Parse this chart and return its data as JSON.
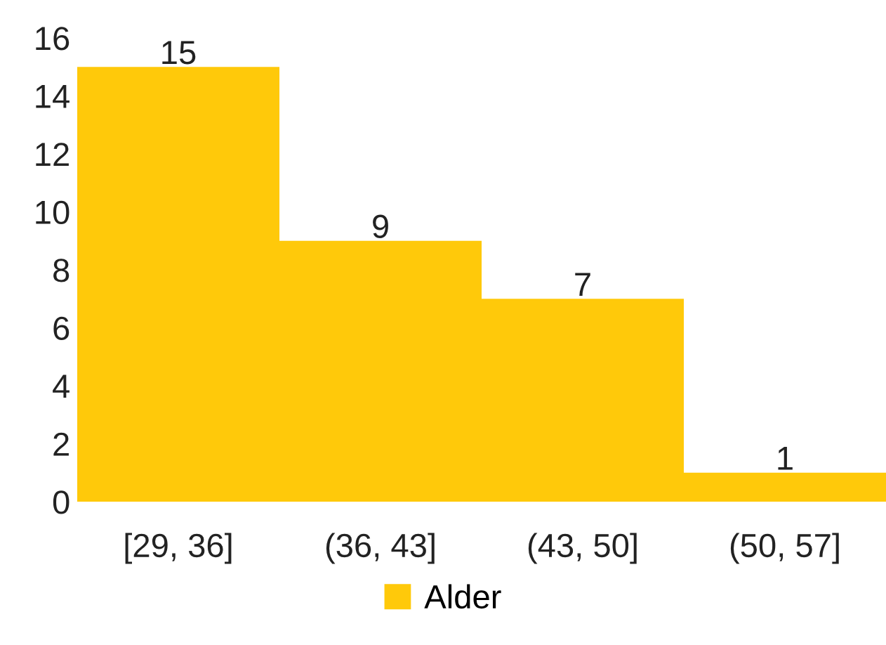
{
  "chart_data": {
    "type": "bar",
    "categories": [
      "[29, 36]",
      "(36, 43]",
      "(43, 50]",
      "(50, 57]"
    ],
    "series": [
      {
        "name": "Alder",
        "color": "#ffc90a",
        "values": [
          15,
          9,
          7,
          1
        ]
      }
    ],
    "ylim": [
      0,
      16
    ],
    "yticks": [
      0,
      2,
      4,
      6,
      8,
      10,
      12,
      14,
      16
    ],
    "data_labels": true,
    "legend": "bottom",
    "grid": false
  }
}
